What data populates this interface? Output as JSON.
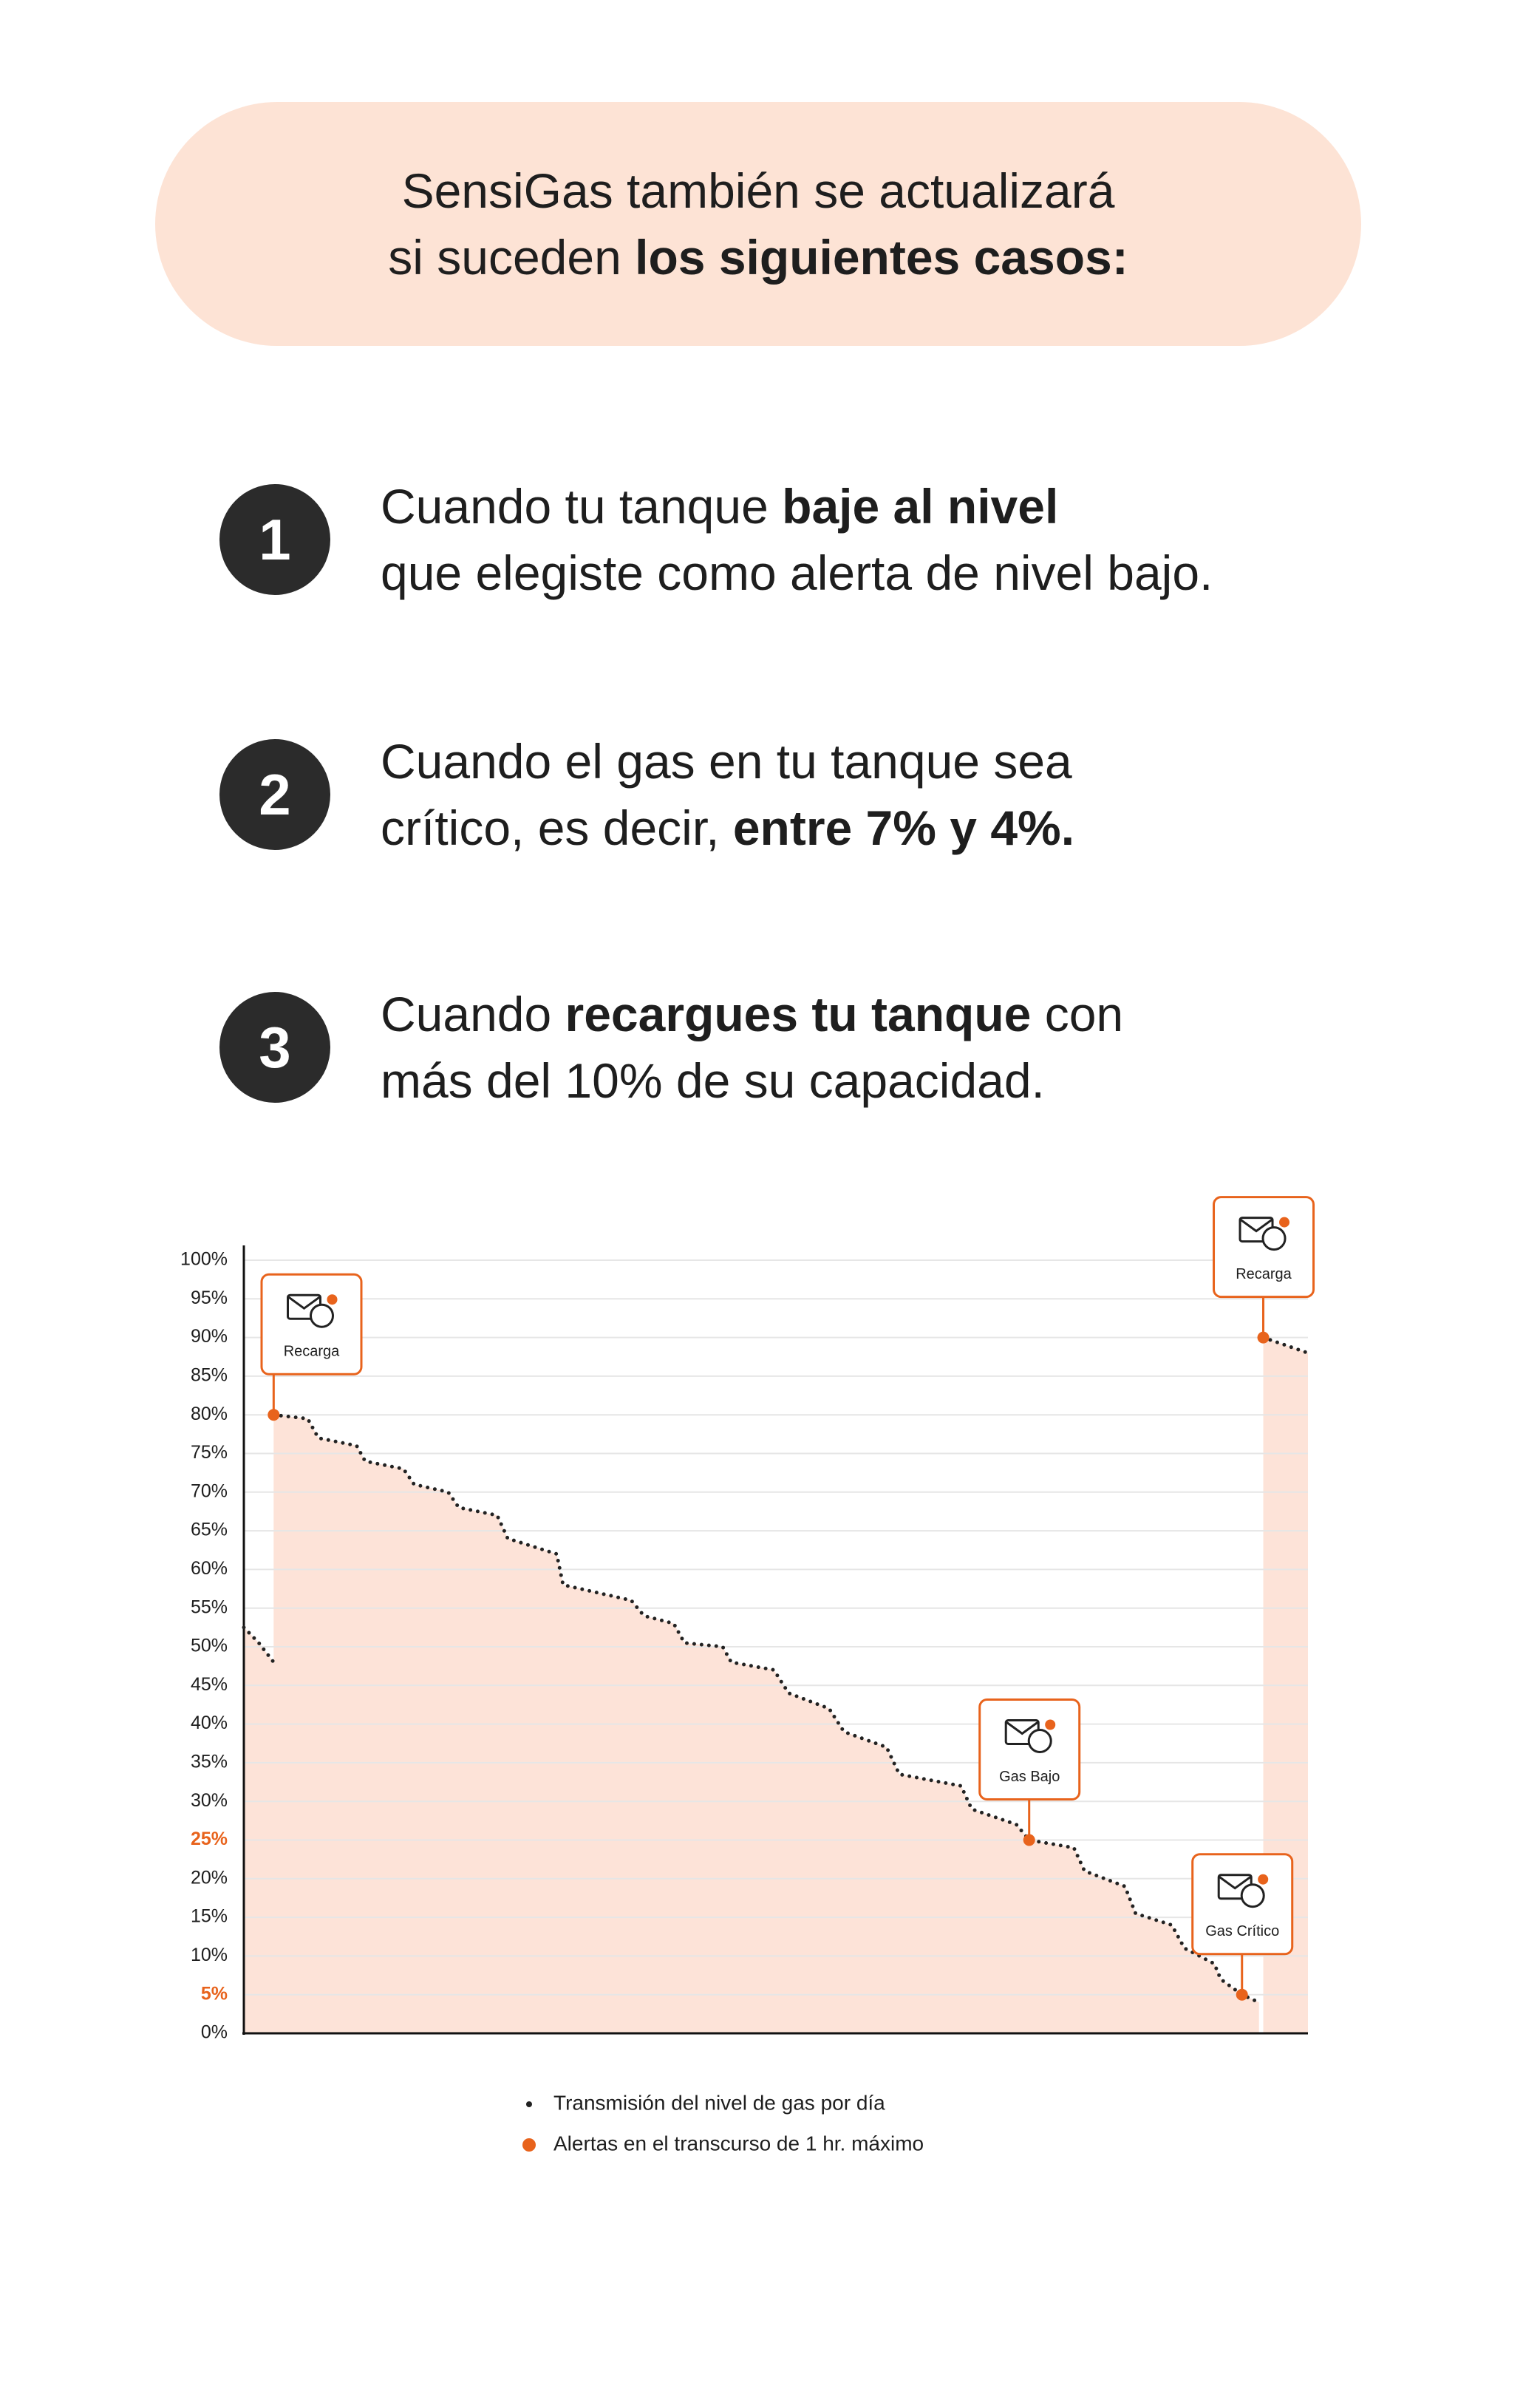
{
  "header": {
    "lines": [
      [
        {
          "text": "SensiGas también se actualizará",
          "bold": false
        }
      ],
      [
        {
          "text": "si suceden ",
          "bold": false
        },
        {
          "text": "los siguientes casos:",
          "bold": true
        }
      ]
    ]
  },
  "cases": [
    {
      "number": 1,
      "lines": [
        [
          {
            "text": "Cuando tu tanque ",
            "bold": false
          },
          {
            "text": "baje al nivel",
            "bold": true
          }
        ],
        [
          {
            "text": "que elegiste como alerta de nivel bajo.",
            "bold": false
          }
        ]
      ]
    },
    {
      "number": 2,
      "lines": [
        [
          {
            "text": "Cuando el gas en tu tanque sea",
            "bold": false
          }
        ],
        [
          {
            "text": "crítico, es decir, ",
            "bold": false
          },
          {
            "text": "entre 7% y 4%.",
            "bold": true
          }
        ]
      ]
    },
    {
      "number": 3,
      "lines": [
        [
          {
            "text": "Cuando ",
            "bold": false
          },
          {
            "text": "recargues tu tanque",
            "bold": true
          },
          {
            "text": " con",
            "bold": false
          }
        ],
        [
          {
            "text": "más del 10% de su capacidad.",
            "bold": false
          }
        ]
      ]
    }
  ],
  "chart_data": {
    "type": "line",
    "x": [
      0,
      0.7,
      1.4,
      1.4,
      1.4,
      3.0,
      3.5,
      5.3,
      5.7,
      7.5,
      8.0,
      9.6,
      10.1,
      11.9,
      12.4,
      14.7,
      15.0,
      18.2,
      18.8,
      20.2,
      20.7,
      22.5,
      22.9,
      24.9,
      25.6,
      27.5,
      28.2,
      30.2,
      30.8,
      33.7,
      34.2,
      36.3,
      36.9,
      39.0,
      39.5,
      41.4,
      41.9,
      43.6,
      44.2,
      45.6,
      45.9,
      46.9,
      47.7,
      47.8,
      47.9,
      50.0
    ],
    "xlim": [
      0,
      50
    ],
    "series": [
      {
        "name": "Transmisión del nivel de gas por día",
        "color": "#222222",
        "values": [
          52.5,
          50.5,
          48,
          null,
          80,
          79.5,
          77,
          76,
          74,
          73,
          71,
          70,
          68,
          67,
          64,
          62,
          58,
          56,
          54,
          53,
          50.5,
          50,
          48,
          47,
          44,
          42,
          39,
          37,
          33.5,
          32,
          29,
          27,
          25,
          24,
          21,
          19,
          15.5,
          14,
          11,
          9,
          7,
          5,
          4,
          null,
          90,
          88
        ]
      }
    ],
    "alerts": {
      "name": "Alertas en el transcurso de 1 hr. máximo",
      "color": "#e8631c",
      "x": [
        1.4,
        47.9,
        36.9,
        46.9
      ],
      "values": [
        80,
        90,
        25,
        5
      ],
      "labels": [
        "Recarga",
        "Recarga",
        "Gas Bajo",
        "Gas Crítico"
      ]
    },
    "fill": "#fde3d8",
    "ylim": [
      0,
      100
    ],
    "yticks": [
      {
        "value": 0,
        "label": "0%"
      },
      {
        "value": 5,
        "label": "5%",
        "color": "#e8631c"
      },
      {
        "value": 10,
        "label": "10%"
      },
      {
        "value": 15,
        "label": "15%"
      },
      {
        "value": 20,
        "label": "20%"
      },
      {
        "value": 25,
        "label": "25%",
        "color": "#e8631c"
      },
      {
        "value": 30,
        "label": "30%"
      },
      {
        "value": 35,
        "label": "35%"
      },
      {
        "value": 40,
        "label": "40%"
      },
      {
        "value": 45,
        "label": "45%"
      },
      {
        "value": 50,
        "label": "50%"
      },
      {
        "value": 55,
        "label": "55%"
      },
      {
        "value": 60,
        "label": "60%"
      },
      {
        "value": 65,
        "label": "65%"
      },
      {
        "value": 70,
        "label": "70%"
      },
      {
        "value": 75,
        "label": "75%"
      },
      {
        "value": 80,
        "label": "80%"
      },
      {
        "value": 85,
        "label": "85%"
      },
      {
        "value": 90,
        "label": "90%"
      },
      {
        "value": 95,
        "label": "95%"
      },
      {
        "value": 100,
        "label": "100%"
      }
    ],
    "grid": true
  }
}
